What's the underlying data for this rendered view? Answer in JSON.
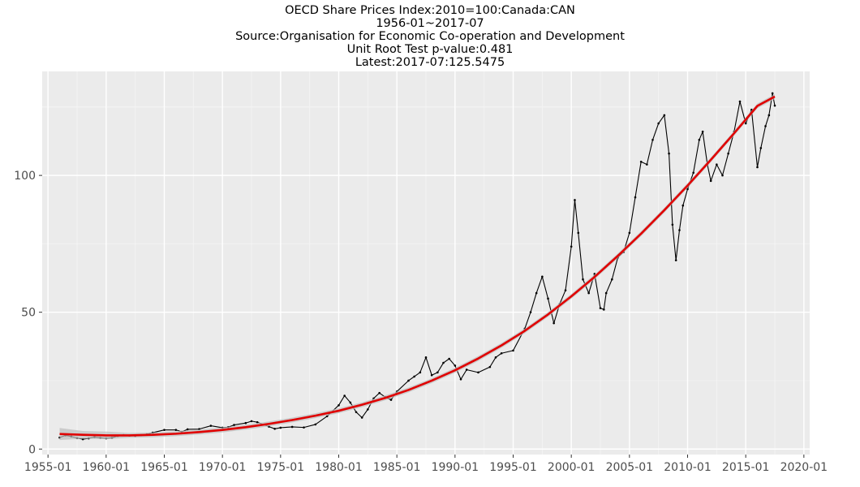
{
  "chart_data": {
    "type": "line",
    "title_lines": [
      "OECD Share Prices Index:2010=100:Canada:CAN",
      "1956-01~2017-07",
      "Source:Organisation for Economic Co-operation and Development",
      "Unit Root Test p-value:0.481",
      "Latest:2017-07:125.5475"
    ],
    "xlabel": "",
    "ylabel": "",
    "x_ticks": [
      "1955-01",
      "1960-01",
      "1965-01",
      "1970-01",
      "1975-01",
      "1980-01",
      "1985-01",
      "1990-01",
      "1995-01",
      "2000-01",
      "2005-01",
      "2010-01",
      "2015-01",
      "2020-01"
    ],
    "y_ticks": [
      0,
      50,
      100
    ],
    "xlim": [
      1954.5,
      2020.5
    ],
    "ylim": [
      -2,
      138
    ],
    "grid": true,
    "series": [
      {
        "color": "#000000",
        "x": [
          1956.0,
          1956.5,
          1957.0,
          1957.5,
          1958.0,
          1958.5,
          1959.0,
          1959.5,
          1960.0,
          1960.5,
          1961.0,
          1961.5,
          1962.0,
          1962.5,
          1963.0,
          1963.5,
          1964.0,
          1965.0,
          1966.0,
          1966.5,
          1967.0,
          1968.0,
          1969.0,
          1970.0,
          1970.5,
          1971.0,
          1972.0,
          1972.5,
          1973.0,
          1974.0,
          1974.5,
          1975.0,
          1976.0,
          1977.0,
          1978.0,
          1979.0,
          1980.0,
          1980.5,
          1981.0,
          1981.5,
          1982.0,
          1982.5,
          1983.0,
          1983.5,
          1984.0,
          1984.5,
          1985.0,
          1986.0,
          1986.5,
          1987.0,
          1987.5,
          1988.0,
          1988.5,
          1989.0,
          1989.5,
          1990.0,
          1990.5,
          1991.0,
          1992.0,
          1993.0,
          1993.5,
          1994.0,
          1995.0,
          1996.0,
          1996.5,
          1997.0,
          1997.5,
          1998.0,
          1998.5,
          1999.0,
          1999.5,
          2000.0,
          2000.3,
          2000.6,
          2001.0,
          2001.5,
          2002.0,
          2002.5,
          2002.8,
          2003.0,
          2003.5,
          2004.0,
          2004.5,
          2005.0,
          2005.5,
          2006.0,
          2006.5,
          2007.0,
          2007.5,
          2008.0,
          2008.4,
          2008.7,
          2009.0,
          2009.3,
          2009.6,
          2010.0,
          2010.5,
          2011.0,
          2011.3,
          2011.7,
          2012.0,
          2012.5,
          2013.0,
          2013.5,
          2014.0,
          2014.5,
          2015.0,
          2015.5,
          2016.0,
          2016.3,
          2016.7,
          2017.0,
          2017.3,
          2017.5
        ],
        "values": [
          4.2,
          5.0,
          4.6,
          4.0,
          3.6,
          3.9,
          4.4,
          4.1,
          3.9,
          4.1,
          4.8,
          5.1,
          4.9,
          4.8,
          5.1,
          5.4,
          6.0,
          7.0,
          7.0,
          6.3,
          7.2,
          7.3,
          8.5,
          7.8,
          8.0,
          8.8,
          9.5,
          10.2,
          9.8,
          8.2,
          7.4,
          7.8,
          8.1,
          7.9,
          9.0,
          12.0,
          16.0,
          19.5,
          17.0,
          13.5,
          11.5,
          14.5,
          18.5,
          20.5,
          19.0,
          18.0,
          21.0,
          25.0,
          26.5,
          28.0,
          33.5,
          27.0,
          28.0,
          31.5,
          33.0,
          30.5,
          25.5,
          29.0,
          28.0,
          30.0,
          33.5,
          35.0,
          36.0,
          44.0,
          50.0,
          57.0,
          63.0,
          55.0,
          46.0,
          53.0,
          58.0,
          74.0,
          91.0,
          79.0,
          62.0,
          57.0,
          64.0,
          51.5,
          51.0,
          57.0,
          62.0,
          70.0,
          72.0,
          79.0,
          92.0,
          105.0,
          104.0,
          113.0,
          119.0,
          122.0,
          108.0,
          82.0,
          69.0,
          80.0,
          89.0,
          95.0,
          101.0,
          113.0,
          116.0,
          104.0,
          98.0,
          104.0,
          100.0,
          108.0,
          116.0,
          127.0,
          119.0,
          124.0,
          103.0,
          110.0,
          118.0,
          122.0,
          130.0,
          125.5
        ]
      },
      {
        "color": "#e00000",
        "x": [
          1956,
          1958,
          1960,
          1962,
          1964,
          1966,
          1968,
          1970,
          1972,
          1974,
          1976,
          1978,
          1980,
          1982,
          1984,
          1986,
          1988,
          1990,
          1992,
          1994,
          1996,
          1998,
          2000,
          2002,
          2004,
          2006,
          2008,
          2010,
          2012,
          2014,
          2016,
          2017.5
        ],
        "values": [
          5.5,
          5.2,
          5.0,
          5.0,
          5.2,
          5.6,
          6.2,
          7.0,
          8.0,
          9.2,
          10.6,
          12.2,
          14.0,
          16.2,
          18.7,
          21.6,
          25.0,
          28.8,
          33.1,
          37.9,
          43.2,
          49.2,
          55.8,
          62.9,
          70.6,
          78.7,
          87.3,
          96.3,
          105.7,
          115.4,
          125.4,
          128.8
        ]
      }
    ]
  }
}
